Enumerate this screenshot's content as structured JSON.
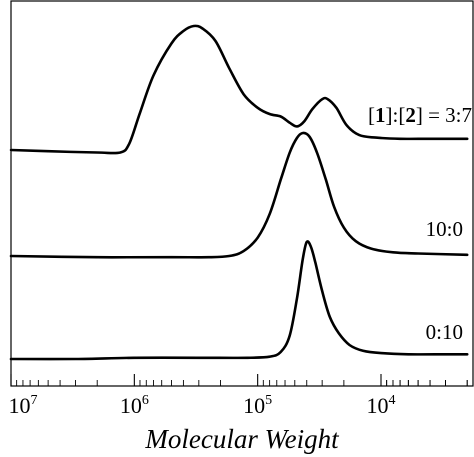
{
  "chart_data": {
    "type": "line",
    "xlabel": "Molecular Weight",
    "ylabel": "",
    "x_scale": "log",
    "x_reversed": true,
    "xlim": [
      10000000,
      2000
    ],
    "x_ticks": [
      {
        "value": 10000000,
        "base": "10",
        "exp": "7"
      },
      {
        "value": 1000000,
        "base": "10",
        "exp": "6"
      },
      {
        "value": 100000,
        "base": "10",
        "exp": "5"
      },
      {
        "value": 10000,
        "base": "10",
        "exp": "4"
      }
    ],
    "y_ticks": false,
    "grid": false,
    "series": [
      {
        "name": "[1]:[2] = 3:7",
        "label_parts": [
          {
            "text": "[",
            "bold": false
          },
          {
            "text": "1",
            "bold": true
          },
          {
            "text": "]:[",
            "bold": false
          },
          {
            "text": "2",
            "bold": true
          },
          {
            "text": "] = 3:7",
            "bold": false
          }
        ],
        "baseline": 0.0,
        "points": [
          [
            10000000,
            0.0
          ],
          [
            5000000,
            -0.01
          ],
          [
            2000000,
            -0.02
          ],
          [
            1300000,
            -0.02
          ],
          [
            1100000,
            0.05
          ],
          [
            900000,
            0.3
          ],
          [
            700000,
            0.6
          ],
          [
            500000,
            0.86
          ],
          [
            400000,
            0.96
          ],
          [
            330000,
            1.0
          ],
          [
            280000,
            0.98
          ],
          [
            220000,
            0.88
          ],
          [
            170000,
            0.66
          ],
          [
            130000,
            0.45
          ],
          [
            100000,
            0.34
          ],
          [
            80000,
            0.29
          ],
          [
            65000,
            0.27
          ],
          [
            55000,
            0.22
          ],
          [
            48000,
            0.19
          ],
          [
            42000,
            0.23
          ],
          [
            36000,
            0.33
          ],
          [
            30000,
            0.41
          ],
          [
            27000,
            0.41
          ],
          [
            23000,
            0.34
          ],
          [
            19000,
            0.2
          ],
          [
            15000,
            0.12
          ],
          [
            11000,
            0.1
          ],
          [
            7000,
            0.09
          ],
          [
            4000,
            0.09
          ],
          [
            2000,
            0.09
          ]
        ]
      },
      {
        "name": "10:0",
        "label_parts": [
          {
            "text": "10:0",
            "bold": false
          }
        ],
        "baseline": 0.0,
        "points": [
          [
            10000000,
            0.0
          ],
          [
            2000000,
            -0.01
          ],
          [
            500000,
            -0.01
          ],
          [
            250000,
            -0.01
          ],
          [
            170000,
            0.0
          ],
          [
            130000,
            0.04
          ],
          [
            100000,
            0.15
          ],
          [
            80000,
            0.34
          ],
          [
            65000,
            0.62
          ],
          [
            55000,
            0.84
          ],
          [
            48000,
            0.96
          ],
          [
            43000,
            1.0
          ],
          [
            38000,
            0.97
          ],
          [
            33000,
            0.84
          ],
          [
            28000,
            0.62
          ],
          [
            24000,
            0.4
          ],
          [
            20000,
            0.23
          ],
          [
            16000,
            0.12
          ],
          [
            12000,
            0.06
          ],
          [
            8000,
            0.03
          ],
          [
            5000,
            0.02
          ],
          [
            2000,
            0.01
          ]
        ]
      },
      {
        "name": "0:10",
        "label_parts": [
          {
            "text": "0:10",
            "bold": false
          }
        ],
        "baseline": 0.0,
        "points": [
          [
            10000000,
            0.0
          ],
          [
            3000000,
            0.0
          ],
          [
            1000000,
            0.01
          ],
          [
            300000,
            0.01
          ],
          [
            120000,
            0.01
          ],
          [
            80000,
            0.02
          ],
          [
            65000,
            0.06
          ],
          [
            55000,
            0.2
          ],
          [
            48000,
            0.52
          ],
          [
            43000,
            0.86
          ],
          [
            40000,
            1.0
          ],
          [
            37000,
            0.96
          ],
          [
            34000,
            0.82
          ],
          [
            30000,
            0.58
          ],
          [
            26000,
            0.36
          ],
          [
            22000,
            0.22
          ],
          [
            18000,
            0.12
          ],
          [
            14000,
            0.07
          ],
          [
            10000,
            0.05
          ],
          [
            6000,
            0.04
          ],
          [
            3000,
            0.04
          ],
          [
            2000,
            0.04
          ]
        ]
      }
    ]
  }
}
